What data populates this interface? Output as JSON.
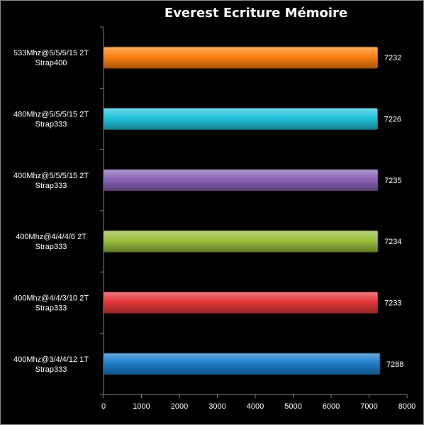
{
  "chart_data": {
    "type": "bar",
    "orientation": "horizontal",
    "title": "Everest Ecriture Mémoire",
    "xlabel": "",
    "ylabel": "",
    "xlim": [
      0,
      8000
    ],
    "ticks": [
      0,
      1000,
      2000,
      3000,
      4000,
      5000,
      6000,
      7000,
      8000
    ],
    "tick_labels": [
      "0",
      "1000",
      "2000",
      "3000",
      "4000",
      "5000",
      "6000",
      "7000",
      "8000"
    ],
    "grid": false,
    "legend": "none",
    "bars": [
      {
        "label_line1": "533Mhz@5/5/5/15  2T",
        "label_line2": "Strap400",
        "value": 7232,
        "value_label": "7232",
        "color": "#ff7f0e"
      },
      {
        "label_line1": "480Mhz@5/5/5/15  2T",
        "label_line2": "Strap333",
        "value": 7226,
        "value_label": "7226",
        "color": "#22c5dd"
      },
      {
        "label_line1": "400Mhz@5/5/5/15  2T",
        "label_line2": "Strap333",
        "value": 7235,
        "value_label": "7235",
        "color": "#8a62b8"
      },
      {
        "label_line1": "400Mhz@4/4/4/6  2T",
        "label_line2": "Strap333",
        "value": 7234,
        "value_label": "7234",
        "color": "#98bf3c"
      },
      {
        "label_line1": "400Mhz@4/4/3/10  2T",
        "label_line2": "Strap333",
        "value": 7233,
        "value_label": "7233",
        "color": "#e5383b"
      },
      {
        "label_line1": "400Mhz@3/4/4/12  1T",
        "label_line2": "Strap333",
        "value": 7288,
        "value_label": "7288",
        "color": "#1f7fcc"
      }
    ]
  }
}
